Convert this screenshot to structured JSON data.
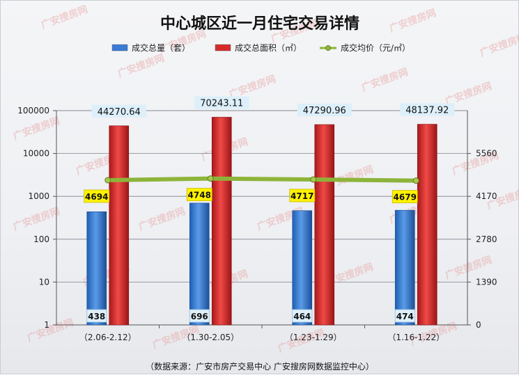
{
  "chart_data": {
    "type": "bar",
    "title": "中心城区近一月住宅交易详情",
    "categories": [
      "（2.06-2.12）",
      "（1.30-2.05）",
      "（1.23-1.29）",
      "（1.16-1.22）"
    ],
    "series": [
      {
        "name": "成交总量（套）",
        "type": "bar",
        "axis": "left-log",
        "color": "#3a7bd5",
        "values": [
          438,
          696,
          464,
          474
        ],
        "labels": [
          "438",
          "696",
          "464",
          "474"
        ]
      },
      {
        "name": "成交总面积（㎡）",
        "type": "bar",
        "axis": "left-log",
        "color": "#d62b2b",
        "values": [
          44270.64,
          70243.11,
          47290.96,
          48137.92
        ],
        "labels": [
          "44270.64",
          "70243.11",
          "47290.96",
          "48137.92"
        ]
      },
      {
        "name": "成交均价（元/㎡）",
        "type": "line",
        "axis": "right",
        "color": "#8db43a",
        "values": [
          4694,
          4748,
          4717,
          4679
        ],
        "labels": [
          "4694",
          "4748",
          "4717",
          "4679"
        ]
      }
    ],
    "y_left": {
      "scale": "log",
      "range": [
        1,
        100000
      ],
      "ticks": [
        "1",
        "10",
        "100",
        "1000",
        "10000",
        "100000"
      ]
    },
    "y_right": {
      "scale": "linear",
      "range": [
        0,
        6950
      ],
      "ticks": [
        "0",
        "1390",
        "2780",
        "4170",
        "5560"
      ]
    },
    "grid": true,
    "legend_position": "top"
  },
  "source": "（数据来源：广安市房产交易中心 广安搜房网数据监控中心）",
  "watermark": "广安搜房网"
}
